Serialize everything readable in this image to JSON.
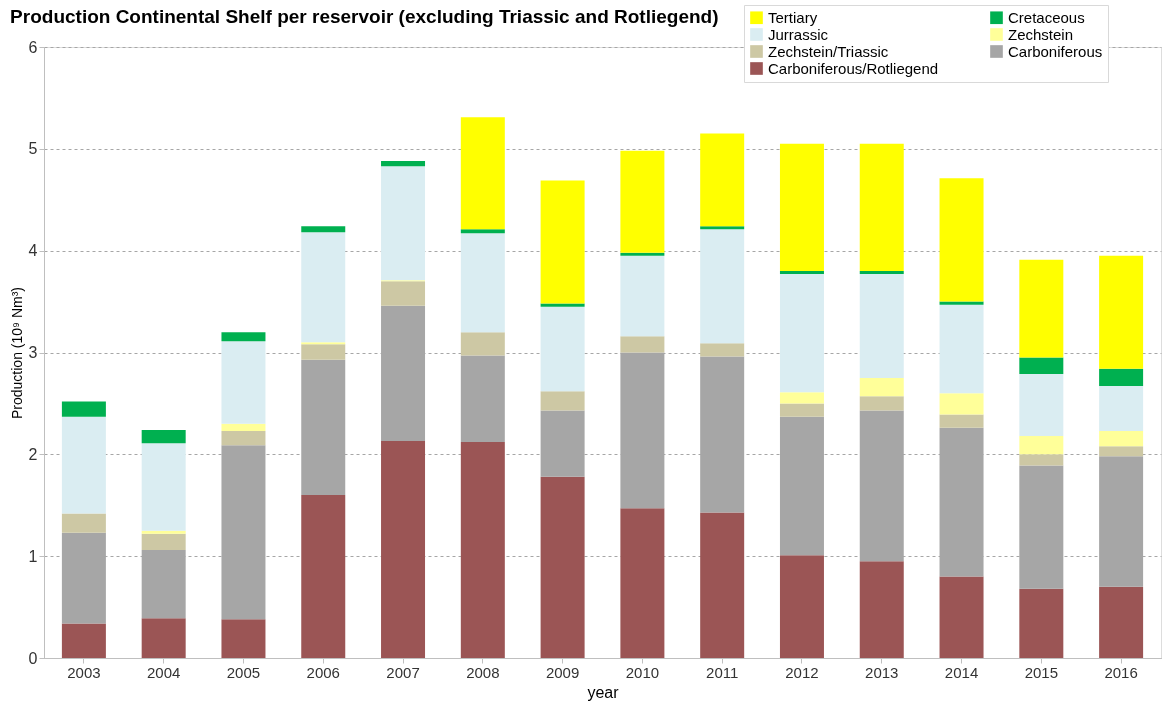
{
  "chart_data": {
    "type": "bar",
    "stacked": true,
    "title": "Production Continental Shelf per reservoir  (excluding Triassic and Rotliegend)",
    "xlabel": "year",
    "ylabel": "Production (10⁹ Nm³)",
    "categories": [
      "2003",
      "2004",
      "2005",
      "2006",
      "2007",
      "2008",
      "2009",
      "2010",
      "2011",
      "2012",
      "2013",
      "2014",
      "2015",
      "2016"
    ],
    "series": [
      {
        "name": "Carboniferous/Rotliegend",
        "color": "#9b5555",
        "values": [
          0.34,
          0.39,
          0.38,
          1.6,
          2.13,
          2.12,
          1.78,
          1.47,
          1.43,
          1.01,
          0.95,
          0.8,
          0.68,
          0.7
        ]
      },
      {
        "name": "Carboniferous",
        "color": "#a6a6a6",
        "values": [
          0.89,
          0.67,
          1.71,
          1.33,
          1.33,
          0.85,
          0.65,
          1.53,
          1.53,
          1.36,
          1.48,
          1.46,
          1.21,
          1.28
        ]
      },
      {
        "name": "Zechstein/Triassic",
        "color": "#cdc8a4",
        "values": [
          0.19,
          0.16,
          0.14,
          0.15,
          0.24,
          0.23,
          0.19,
          0.16,
          0.13,
          0.13,
          0.14,
          0.13,
          0.11,
          0.1
        ]
      },
      {
        "name": "Zechstein",
        "color": "#ffff99",
        "values": [
          null,
          0.03,
          0.07,
          0.02,
          0.01,
          null,
          null,
          null,
          null,
          0.11,
          0.18,
          0.21,
          0.18,
          0.15
        ]
      },
      {
        "name": "Jurrassic",
        "color": "#daedf2",
        "values": [
          0.95,
          0.86,
          0.81,
          1.08,
          1.12,
          0.97,
          0.83,
          0.79,
          1.12,
          1.16,
          1.02,
          0.87,
          0.61,
          0.44
        ]
      },
      {
        "name": "Cretaceous",
        "color": "#00b050",
        "values": [
          0.15,
          0.13,
          0.09,
          0.06,
          0.05,
          0.04,
          0.03,
          0.03,
          0.03,
          0.03,
          0.03,
          0.03,
          0.16,
          0.17
        ]
      },
      {
        "name": "Tertiary",
        "color": "#ffff00",
        "values": [
          null,
          null,
          null,
          null,
          null,
          1.1,
          1.21,
          1.0,
          0.91,
          1.25,
          1.25,
          1.21,
          0.96,
          1.11
        ]
      }
    ],
    "ylim": [
      0,
      6
    ],
    "yticks": [
      0,
      1,
      2,
      3,
      4,
      5,
      6
    ],
    "grid": "y",
    "legend": "top right"
  }
}
